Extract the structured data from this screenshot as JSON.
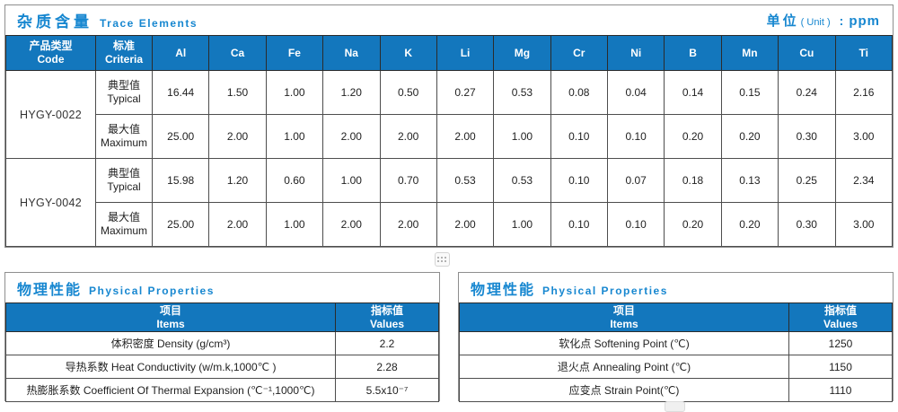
{
  "trace_table": {
    "title_cn": "杂质含量",
    "title_en": "Trace Elements",
    "unit_label": "单位",
    "unit_paren": "( Unit )",
    "unit_colon": ":",
    "unit_value": "ppm",
    "col1_cn": "产品类型",
    "col1_en": "Code",
    "col2_cn": "标准",
    "col2_en": "Criteria",
    "elements": [
      "Al",
      "Ca",
      "Fe",
      "Na",
      "K",
      "Li",
      "Mg",
      "Cr",
      "Ni",
      "B",
      "Mn",
      "Cu",
      "Ti"
    ],
    "products": [
      {
        "code": "HYGY-0022",
        "rows": [
          {
            "criteria_cn": "典型值",
            "criteria_en": "Typical",
            "values": [
              "16.44",
              "1.50",
              "1.00",
              "1.20",
              "0.50",
              "0.27",
              "0.53",
              "0.08",
              "0.04",
              "0.14",
              "0.15",
              "0.24",
              "2.16"
            ]
          },
          {
            "criteria_cn": "最大值",
            "criteria_en": "Maximum",
            "values": [
              "25.00",
              "2.00",
              "1.00",
              "2.00",
              "2.00",
              "2.00",
              "1.00",
              "0.10",
              "0.10",
              "0.20",
              "0.20",
              "0.30",
              "3.00"
            ]
          }
        ]
      },
      {
        "code": "HYGY-0042",
        "rows": [
          {
            "criteria_cn": "典型值",
            "criteria_en": "Typical",
            "values": [
              "15.98",
              "1.20",
              "0.60",
              "1.00",
              "0.70",
              "0.53",
              "0.53",
              "0.10",
              "0.07",
              "0.18",
              "0.13",
              "0.25",
              "2.34"
            ]
          },
          {
            "criteria_cn": "最大值",
            "criteria_en": "Maximum",
            "values": [
              "25.00",
              "2.00",
              "1.00",
              "2.00",
              "2.00",
              "2.00",
              "1.00",
              "0.10",
              "0.10",
              "0.20",
              "0.20",
              "0.30",
              "3.00"
            ]
          }
        ]
      }
    ]
  },
  "physical_tables": [
    {
      "title_cn": "物理性能",
      "title_en": "Physical Properties",
      "items_cn": "项目",
      "items_en": "Items",
      "values_cn": "指标值",
      "values_en": "Values",
      "rows": [
        {
          "item": "体积密度 Density (g/cm³)",
          "value": "2.2"
        },
        {
          "item": "导热系数 Heat Conductivity (w/m.k,1000℃ )",
          "value": "2.28"
        },
        {
          "item": "热膨胀系数 Coefficient Of Thermal Expansion (℃⁻¹,1000℃)",
          "value": "5.5x10⁻⁷"
        }
      ]
    },
    {
      "title_cn": "物理性能",
      "title_en": "Physical Properties",
      "items_cn": "项目",
      "items_en": "Items",
      "values_cn": "指标值",
      "values_en": "Values",
      "rows": [
        {
          "item": "软化点 Softening Point (℃)",
          "value": "1250"
        },
        {
          "item": "退火点 Annealing Point (℃)",
          "value": "1150"
        },
        {
          "item": "应变点 Strain Point(℃)",
          "value": "1110"
        }
      ]
    }
  ],
  "icons": {
    "drag_handle": {
      "glyph": "six-dot-grid",
      "dot_color": "#9a9a9a"
    }
  },
  "colors": {
    "header_bg": "#1377bd",
    "title_text": "#1787d0",
    "grid_line": "#4d4d4d",
    "outer_border": "#8e8e8e"
  }
}
